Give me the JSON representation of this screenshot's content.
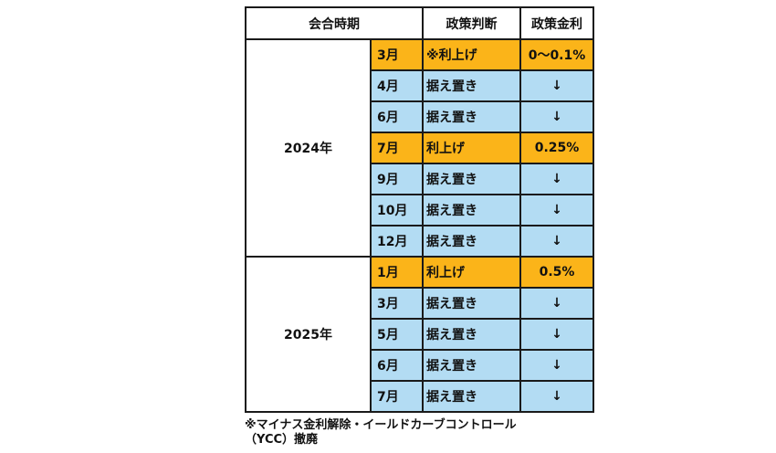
{
  "headers": {
    "meeting": "会合時期",
    "decision": "政策判断",
    "rate": "政策金利"
  },
  "groups": [
    {
      "year": "2024年",
      "rows": [
        {
          "month": "3月",
          "decision": "※利上げ",
          "rate": "0〜0.1%",
          "type": "hike"
        },
        {
          "month": "4月",
          "decision": "据え置き",
          "rate": "↓",
          "type": "hold"
        },
        {
          "month": "6月",
          "decision": "据え置き",
          "rate": "↓",
          "type": "hold"
        },
        {
          "month": "7月",
          "decision": "利上げ",
          "rate": "0.25%",
          "type": "hike"
        },
        {
          "month": "9月",
          "decision": "据え置き",
          "rate": "↓",
          "type": "hold"
        },
        {
          "month": "10月",
          "decision": "据え置き",
          "rate": "↓",
          "type": "hold"
        },
        {
          "month": "12月",
          "decision": "据え置き",
          "rate": "↓",
          "type": "hold"
        }
      ]
    },
    {
      "year": "2025年",
      "rows": [
        {
          "month": "1月",
          "decision": "利上げ",
          "rate": "0.5%",
          "type": "hike"
        },
        {
          "month": "3月",
          "decision": "据え置き",
          "rate": "↓",
          "type": "hold"
        },
        {
          "month": "5月",
          "decision": "据え置き",
          "rate": "↓",
          "type": "hold"
        },
        {
          "month": "6月",
          "decision": "据え置き",
          "rate": "↓",
          "type": "hold"
        },
        {
          "month": "7月",
          "decision": "据え置き",
          "rate": "↓",
          "type": "hold"
        }
      ]
    }
  ],
  "footnote": "※マイナス金利解除・イールドカーブコントロール（YCC）撤廃",
  "colors": {
    "hike": "#fbb419",
    "hold": "#b3dcf3",
    "border": "#1a1a1a"
  }
}
